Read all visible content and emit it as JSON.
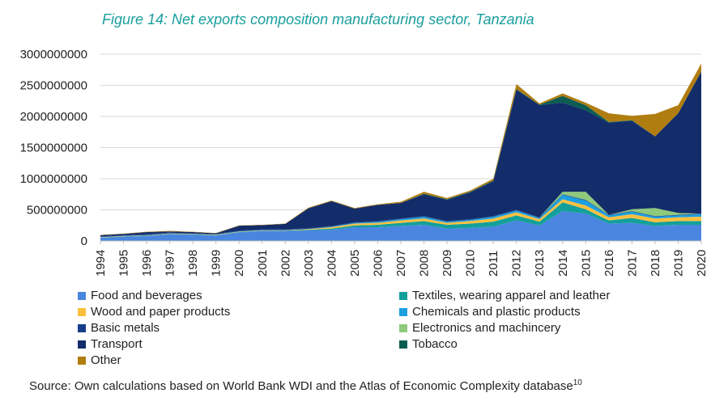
{
  "figure": {
    "title": "Figure 14: Net exports composition manufacturing sector, Tanzania",
    "source": "Source: Own calculations based on World Bank WDI and the Atlas of Economic Complexity database",
    "source_footnote": "10"
  },
  "chart_data": {
    "type": "area",
    "stacked": true,
    "title": "Figure 14: Net exports composition manufacturing sector, Tanzania",
    "xlabel": "",
    "ylabel": "",
    "ylim": [
      0,
      3000000000
    ],
    "yticks": [
      "0",
      "500000000",
      "1000000000",
      "1500000000",
      "2000000000",
      "2500000000",
      "3000000000"
    ],
    "grid": true,
    "legend_position": "bottom",
    "x": [
      "1994",
      "1995",
      "1996",
      "1997",
      "1998",
      "1999",
      "2000",
      "2001",
      "2002",
      "2003",
      "2004",
      "2005",
      "2006",
      "2007",
      "2008",
      "2009",
      "2010",
      "2011",
      "2012",
      "2013",
      "2014",
      "2015",
      "2016",
      "2017",
      "2018",
      "2019",
      "2020"
    ],
    "series": [
      {
        "name": "Food and beverages",
        "color": "#4a86e0",
        "values": [
          50000000,
          70000000,
          80000000,
          110000000,
          100000000,
          90000000,
          140000000,
          160000000,
          160000000,
          170000000,
          180000000,
          220000000,
          220000000,
          240000000,
          260000000,
          200000000,
          210000000,
          230000000,
          330000000,
          250000000,
          480000000,
          440000000,
          280000000,
          290000000,
          240000000,
          260000000,
          260000000
        ]
      },
      {
        "name": "Textiles, wearing apparel and leather",
        "color": "#14a09a",
        "values": [
          5000000,
          5000000,
          5000000,
          5000000,
          5000000,
          5000000,
          5000000,
          5000000,
          5000000,
          10000000,
          20000000,
          30000000,
          40000000,
          50000000,
          60000000,
          60000000,
          70000000,
          80000000,
          80000000,
          60000000,
          140000000,
          70000000,
          50000000,
          80000000,
          60000000,
          60000000,
          60000000
        ]
      },
      {
        "name": "Wood and paper products",
        "color": "#fbbf3e",
        "values": [
          5000000,
          5000000,
          5000000,
          5000000,
          5000000,
          5000000,
          5000000,
          5000000,
          5000000,
          10000000,
          20000000,
          30000000,
          30000000,
          40000000,
          40000000,
          30000000,
          40000000,
          50000000,
          50000000,
          40000000,
          50000000,
          60000000,
          50000000,
          60000000,
          60000000,
          60000000,
          70000000
        ]
      },
      {
        "name": "Chemicals and plastic products",
        "color": "#1ca0e0",
        "values": [
          3000000,
          3000000,
          3000000,
          3000000,
          3000000,
          3000000,
          5000000,
          5000000,
          5000000,
          5000000,
          10000000,
          10000000,
          20000000,
          20000000,
          30000000,
          20000000,
          20000000,
          30000000,
          30000000,
          20000000,
          70000000,
          80000000,
          30000000,
          40000000,
          30000000,
          30000000,
          40000000
        ]
      },
      {
        "name": "Basic metals",
        "color": "#163d8a",
        "values": [
          10000000,
          10000000,
          20000000,
          10000000,
          10000000,
          10000000,
          10000000,
          10000000,
          10000000,
          10000000,
          10000000,
          10000000,
          10000000,
          10000000,
          10000000,
          10000000,
          10000000,
          10000000,
          10000000,
          10000000,
          10000000,
          10000000,
          10000000,
          10000000,
          10000000,
          10000000,
          10000000
        ]
      },
      {
        "name": "Electronics and machincery",
        "color": "#8ec97c",
        "values": [
          0,
          0,
          0,
          0,
          0,
          0,
          0,
          0,
          0,
          0,
          0,
          0,
          0,
          0,
          0,
          0,
          0,
          0,
          0,
          0,
          40000000,
          130000000,
          0,
          30000000,
          130000000,
          30000000,
          0
        ]
      },
      {
        "name": "Transport",
        "color": "#132c6a",
        "values": [
          20000000,
          20000000,
          30000000,
          20000000,
          20000000,
          10000000,
          80000000,
          70000000,
          90000000,
          320000000,
          400000000,
          220000000,
          260000000,
          250000000,
          350000000,
          340000000,
          430000000,
          560000000,
          1930000000,
          1800000000,
          1430000000,
          1310000000,
          1480000000,
          1420000000,
          1150000000,
          1600000000,
          2280000000
        ]
      },
      {
        "name": "Tobacco",
        "color": "#0b5c52",
        "values": [
          0,
          0,
          0,
          0,
          0,
          0,
          0,
          0,
          0,
          0,
          0,
          0,
          0,
          0,
          10000000,
          10000000,
          10000000,
          10000000,
          10000000,
          10000000,
          110000000,
          80000000,
          10000000,
          10000000,
          0,
          0,
          0
        ]
      },
      {
        "name": "Other",
        "color": "#b07d10",
        "values": [
          5000000,
          5000000,
          5000000,
          10000000,
          5000000,
          5000000,
          5000000,
          5000000,
          5000000,
          10000000,
          10000000,
          10000000,
          10000000,
          20000000,
          30000000,
          20000000,
          20000000,
          30000000,
          80000000,
          20000000,
          40000000,
          40000000,
          140000000,
          70000000,
          360000000,
          130000000,
          130000000
        ]
      }
    ]
  }
}
